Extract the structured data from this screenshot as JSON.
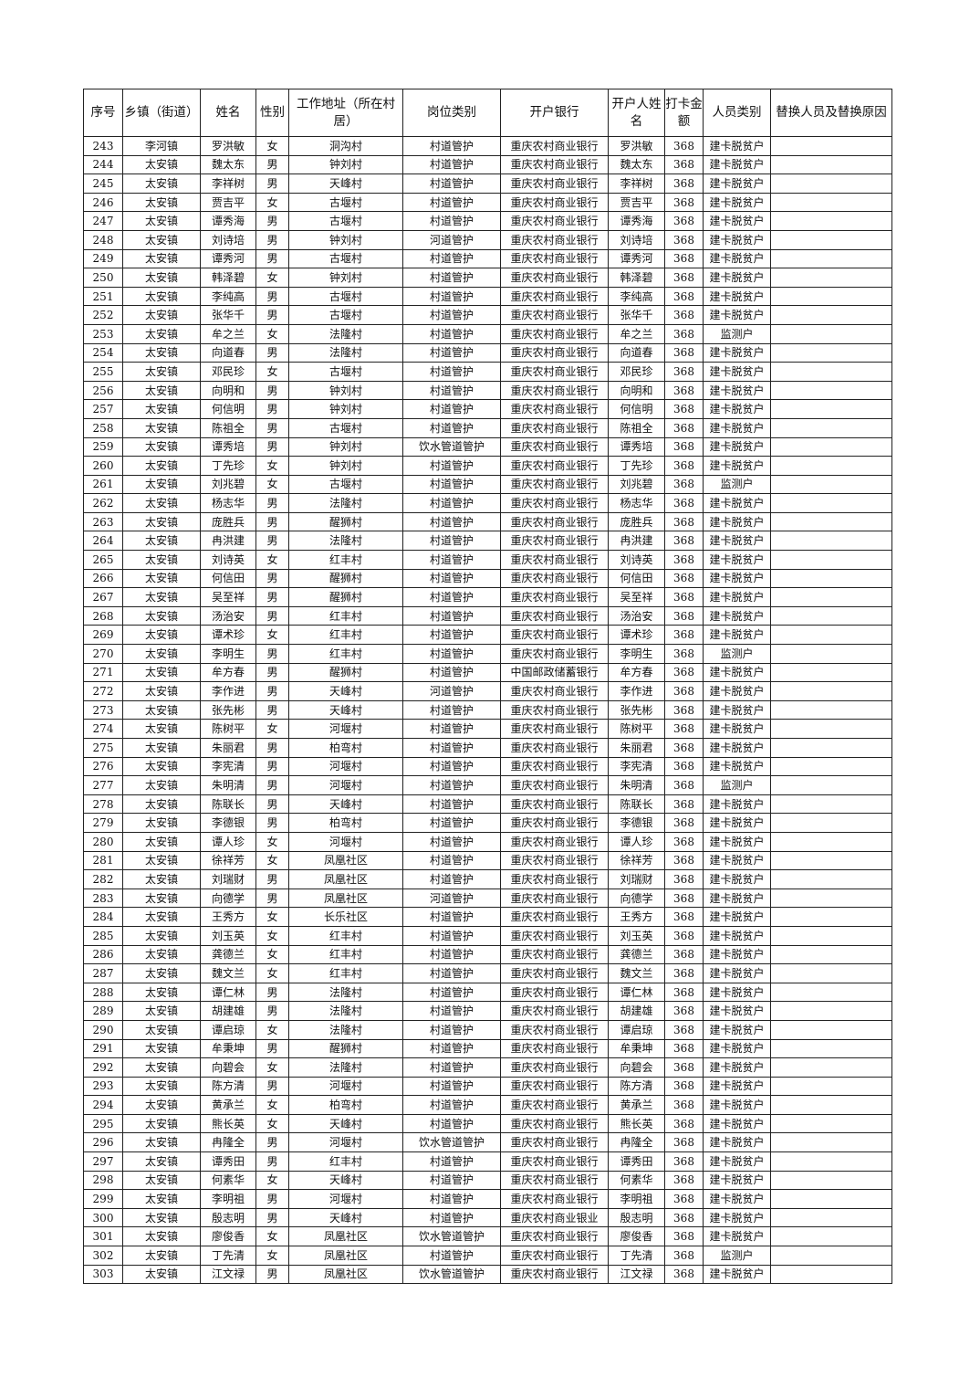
{
  "headers": [
    "序号",
    "乡镇（街道）",
    "姓名",
    "性别",
    "工作地址（所在村居）",
    "岗位类别",
    "开户银行",
    "开户人姓名",
    "打卡金额",
    "人员类别",
    "替换人员及替换原因"
  ],
  "rows": [
    [
      "243",
      "李河镇",
      "罗洪敏",
      "女",
      "洞沟村",
      "村道管护",
      "重庆农村商业银行",
      "罗洪敏",
      "368",
      "建卡脱贫户",
      ""
    ],
    [
      "244",
      "太安镇",
      "魏太东",
      "男",
      "钟刘村",
      "村道管护",
      "重庆农村商业银行",
      "魏太东",
      "368",
      "建卡脱贫户",
      ""
    ],
    [
      "245",
      "太安镇",
      "李祥树",
      "男",
      "天峰村",
      "村道管护",
      "重庆农村商业银行",
      "李祥树",
      "368",
      "建卡脱贫户",
      ""
    ],
    [
      "246",
      "太安镇",
      "贾吉平",
      "女",
      "古堰村",
      "村道管护",
      "重庆农村商业银行",
      "贾吉平",
      "368",
      "建卡脱贫户",
      ""
    ],
    [
      "247",
      "太安镇",
      "谭秀海",
      "男",
      "古堰村",
      "村道管护",
      "重庆农村商业银行",
      "谭秀海",
      "368",
      "建卡脱贫户",
      ""
    ],
    [
      "248",
      "太安镇",
      "刘诗培",
      "男",
      "钟刘村",
      "河道管护",
      "重庆农村商业银行",
      "刘诗培",
      "368",
      "建卡脱贫户",
      ""
    ],
    [
      "249",
      "太安镇",
      "谭秀河",
      "男",
      "古堰村",
      "村道管护",
      "重庆农村商业银行",
      "谭秀河",
      "368",
      "建卡脱贫户",
      ""
    ],
    [
      "250",
      "太安镇",
      "韩泽碧",
      "女",
      "钟刘村",
      "村道管护",
      "重庆农村商业银行",
      "韩泽碧",
      "368",
      "建卡脱贫户",
      ""
    ],
    [
      "251",
      "太安镇",
      "李纯高",
      "男",
      "古堰村",
      "村道管护",
      "重庆农村商业银行",
      "李纯高",
      "368",
      "建卡脱贫户",
      ""
    ],
    [
      "252",
      "太安镇",
      "张华千",
      "男",
      "古堰村",
      "村道管护",
      "重庆农村商业银行",
      "张华千",
      "368",
      "建卡脱贫户",
      ""
    ],
    [
      "253",
      "太安镇",
      "牟之兰",
      "女",
      "法隆村",
      "村道管护",
      "重庆农村商业银行",
      "牟之兰",
      "368",
      "监测户",
      ""
    ],
    [
      "254",
      "太安镇",
      "向道春",
      "男",
      "法隆村",
      "村道管护",
      "重庆农村商业银行",
      "向道春",
      "368",
      "建卡脱贫户",
      ""
    ],
    [
      "255",
      "太安镇",
      "邓民珍",
      "女",
      "古堰村",
      "村道管护",
      "重庆农村商业银行",
      "邓民珍",
      "368",
      "建卡脱贫户",
      ""
    ],
    [
      "256",
      "太安镇",
      "向明和",
      "男",
      "钟刘村",
      "村道管护",
      "重庆农村商业银行",
      "向明和",
      "368",
      "建卡脱贫户",
      ""
    ],
    [
      "257",
      "太安镇",
      "何信明",
      "男",
      "钟刘村",
      "村道管护",
      "重庆农村商业银行",
      "何信明",
      "368",
      "建卡脱贫户",
      ""
    ],
    [
      "258",
      "太安镇",
      "陈祖全",
      "男",
      "古堰村",
      "村道管护",
      "重庆农村商业银行",
      "陈祖全",
      "368",
      "建卡脱贫户",
      ""
    ],
    [
      "259",
      "太安镇",
      "谭秀培",
      "男",
      "钟刘村",
      "饮水管道管护",
      "重庆农村商业银行",
      "谭秀培",
      "368",
      "建卡脱贫户",
      ""
    ],
    [
      "260",
      "太安镇",
      "丁先珍",
      "女",
      "钟刘村",
      "村道管护",
      "重庆农村商业银行",
      "丁先珍",
      "368",
      "建卡脱贫户",
      ""
    ],
    [
      "261",
      "太安镇",
      "刘兆碧",
      "女",
      "古堰村",
      "村道管护",
      "重庆农村商业银行",
      "刘兆碧",
      "368",
      "监测户",
      ""
    ],
    [
      "262",
      "太安镇",
      "杨志华",
      "男",
      "法隆村",
      "村道管护",
      "重庆农村商业银行",
      "杨志华",
      "368",
      "建卡脱贫户",
      ""
    ],
    [
      "263",
      "太安镇",
      "庞胜兵",
      "男",
      "醒狮村",
      "村道管护",
      "重庆农村商业银行",
      "庞胜兵",
      "368",
      "建卡脱贫户",
      ""
    ],
    [
      "264",
      "太安镇",
      "冉洪建",
      "男",
      "法隆村",
      "村道管护",
      "重庆农村商业银行",
      "冉洪建",
      "368",
      "建卡脱贫户",
      ""
    ],
    [
      "265",
      "太安镇",
      "刘诗英",
      "女",
      "红丰村",
      "村道管护",
      "重庆农村商业银行",
      "刘诗英",
      "368",
      "建卡脱贫户",
      ""
    ],
    [
      "266",
      "太安镇",
      "何信田",
      "男",
      "醒狮村",
      "村道管护",
      "重庆农村商业银行",
      "何信田",
      "368",
      "建卡脱贫户",
      ""
    ],
    [
      "267",
      "太安镇",
      "吴至祥",
      "男",
      "醒狮村",
      "村道管护",
      "重庆农村商业银行",
      "吴至祥",
      "368",
      "建卡脱贫户",
      ""
    ],
    [
      "268",
      "太安镇",
      "汤治安",
      "男",
      "红丰村",
      "村道管护",
      "重庆农村商业银行",
      "汤治安",
      "368",
      "建卡脱贫户",
      ""
    ],
    [
      "269",
      "太安镇",
      "谭术珍",
      "女",
      "红丰村",
      "村道管护",
      "重庆农村商业银行",
      "谭术珍",
      "368",
      "建卡脱贫户",
      ""
    ],
    [
      "270",
      "太安镇",
      "李明生",
      "男",
      "红丰村",
      "村道管护",
      "重庆农村商业银行",
      "李明生",
      "368",
      "监测户",
      ""
    ],
    [
      "271",
      "太安镇",
      "牟方春",
      "男",
      "醒狮村",
      "村道管护",
      "中国邮政储蓄银行",
      "牟方春",
      "368",
      "建卡脱贫户",
      ""
    ],
    [
      "272",
      "太安镇",
      "李作进",
      "男",
      "天峰村",
      "河道管护",
      "重庆农村商业银行",
      "李作进",
      "368",
      "建卡脱贫户",
      ""
    ],
    [
      "273",
      "太安镇",
      "张先彬",
      "男",
      "天峰村",
      "村道管护",
      "重庆农村商业银行",
      "张先彬",
      "368",
      "建卡脱贫户",
      ""
    ],
    [
      "274",
      "太安镇",
      "陈树平",
      "女",
      "河堰村",
      "村道管护",
      "重庆农村商业银行",
      "陈树平",
      "368",
      "建卡脱贫户",
      ""
    ],
    [
      "275",
      "太安镇",
      "朱丽君",
      "男",
      "柏弯村",
      "村道管护",
      "重庆农村商业银行",
      "朱丽君",
      "368",
      "建卡脱贫户",
      ""
    ],
    [
      "276",
      "太安镇",
      "李宪清",
      "男",
      "河堰村",
      "村道管护",
      "重庆农村商业银行",
      "李宪清",
      "368",
      "建卡脱贫户",
      ""
    ],
    [
      "277",
      "太安镇",
      "朱明清",
      "男",
      "河堰村",
      "村道管护",
      "重庆农村商业银行",
      "朱明清",
      "368",
      "监测户",
      ""
    ],
    [
      "278",
      "太安镇",
      "陈联长",
      "男",
      "天峰村",
      "村道管护",
      "重庆农村商业银行",
      "陈联长",
      "368",
      "建卡脱贫户",
      ""
    ],
    [
      "279",
      "太安镇",
      "李德银",
      "男",
      "柏弯村",
      "村道管护",
      "重庆农村商业银行",
      "李德银",
      "368",
      "建卡脱贫户",
      ""
    ],
    [
      "280",
      "太安镇",
      "谭人珍",
      "女",
      "河堰村",
      "村道管护",
      "重庆农村商业银行",
      "谭人珍",
      "368",
      "建卡脱贫户",
      ""
    ],
    [
      "281",
      "太安镇",
      "徐祥芳",
      "女",
      "凤凰社区",
      "村道管护",
      "重庆农村商业银行",
      "徐祥芳",
      "368",
      "建卡脱贫户",
      ""
    ],
    [
      "282",
      "太安镇",
      "刘瑞财",
      "男",
      "凤凰社区",
      "村道管护",
      "重庆农村商业银行",
      "刘瑞财",
      "368",
      "建卡脱贫户",
      ""
    ],
    [
      "283",
      "太安镇",
      "向德学",
      "男",
      "凤凰社区",
      "河道管护",
      "重庆农村商业银行",
      "向德学",
      "368",
      "建卡脱贫户",
      ""
    ],
    [
      "284",
      "太安镇",
      "王秀方",
      "女",
      "长乐社区",
      "村道管护",
      "重庆农村商业银行",
      "王秀方",
      "368",
      "建卡脱贫户",
      ""
    ],
    [
      "285",
      "太安镇",
      "刘玉英",
      "女",
      "红丰村",
      "村道管护",
      "重庆农村商业银行",
      "刘玉英",
      "368",
      "建卡脱贫户",
      ""
    ],
    [
      "286",
      "太安镇",
      "龚德兰",
      "女",
      "红丰村",
      "村道管护",
      "重庆农村商业银行",
      "龚德兰",
      "368",
      "建卡脱贫户",
      ""
    ],
    [
      "287",
      "太安镇",
      "魏文兰",
      "女",
      "红丰村",
      "村道管护",
      "重庆农村商业银行",
      "魏文兰",
      "368",
      "建卡脱贫户",
      ""
    ],
    [
      "288",
      "太安镇",
      "谭仁林",
      "男",
      "法隆村",
      "村道管护",
      "重庆农村商业银行",
      "谭仁林",
      "368",
      "建卡脱贫户",
      ""
    ],
    [
      "289",
      "太安镇",
      "胡建雄",
      "男",
      "法隆村",
      "村道管护",
      "重庆农村商业银行",
      "胡建雄",
      "368",
      "建卡脱贫户",
      ""
    ],
    [
      "290",
      "太安镇",
      "谭启琼",
      "女",
      "法隆村",
      "村道管护",
      "重庆农村商业银行",
      "谭启琼",
      "368",
      "建卡脱贫户",
      ""
    ],
    [
      "291",
      "太安镇",
      "牟秉坤",
      "男",
      "醒狮村",
      "村道管护",
      "重庆农村商业银行",
      "牟秉坤",
      "368",
      "建卡脱贫户",
      ""
    ],
    [
      "292",
      "太安镇",
      "向碧会",
      "女",
      "法隆村",
      "村道管护",
      "重庆农村商业银行",
      "向碧会",
      "368",
      "建卡脱贫户",
      ""
    ],
    [
      "293",
      "太安镇",
      "陈方清",
      "男",
      "河堰村",
      "村道管护",
      "重庆农村商业银行",
      "陈方清",
      "368",
      "建卡脱贫户",
      ""
    ],
    [
      "294",
      "太安镇",
      "黄承兰",
      "女",
      "柏弯村",
      "村道管护",
      "重庆农村商业银行",
      "黄承兰",
      "368",
      "建卡脱贫户",
      ""
    ],
    [
      "295",
      "太安镇",
      "熊长英",
      "女",
      "天峰村",
      "村道管护",
      "重庆农村商业银行",
      "熊长英",
      "368",
      "建卡脱贫户",
      ""
    ],
    [
      "296",
      "太安镇",
      "冉隆全",
      "男",
      "河堰村",
      "饮水管道管护",
      "重庆农村商业银行",
      "冉隆全",
      "368",
      "建卡脱贫户",
      ""
    ],
    [
      "297",
      "太安镇",
      "谭秀田",
      "男",
      "红丰村",
      "村道管护",
      "重庆农村商业银行",
      "谭秀田",
      "368",
      "建卡脱贫户",
      ""
    ],
    [
      "298",
      "太安镇",
      "何素华",
      "女",
      "天峰村",
      "村道管护",
      "重庆农村商业银行",
      "何素华",
      "368",
      "建卡脱贫户",
      ""
    ],
    [
      "299",
      "太安镇",
      "李明祖",
      "男",
      "河堰村",
      "村道管护",
      "重庆农村商业银行",
      "李明祖",
      "368",
      "建卡脱贫户",
      ""
    ],
    [
      "300",
      "太安镇",
      "殷志明",
      "男",
      "天峰村",
      "村道管护",
      "重庆农村商业银业",
      "殷志明",
      "368",
      "建卡脱贫户",
      ""
    ],
    [
      "301",
      "太安镇",
      "廖俊香",
      "女",
      "凤凰社区",
      "饮水管道管护",
      "重庆农村商业银行",
      "廖俊香",
      "368",
      "建卡脱贫户",
      ""
    ],
    [
      "302",
      "太安镇",
      "丁先清",
      "女",
      "凤凰社区",
      "村道管护",
      "重庆农村商业银行",
      "丁先清",
      "368",
      "监测户",
      ""
    ],
    [
      "303",
      "太安镇",
      "江文禄",
      "男",
      "凤凰社区",
      "饮水管道管护",
      "重庆农村商业银行",
      "江文禄",
      "368",
      "建卡脱贫户",
      ""
    ]
  ]
}
